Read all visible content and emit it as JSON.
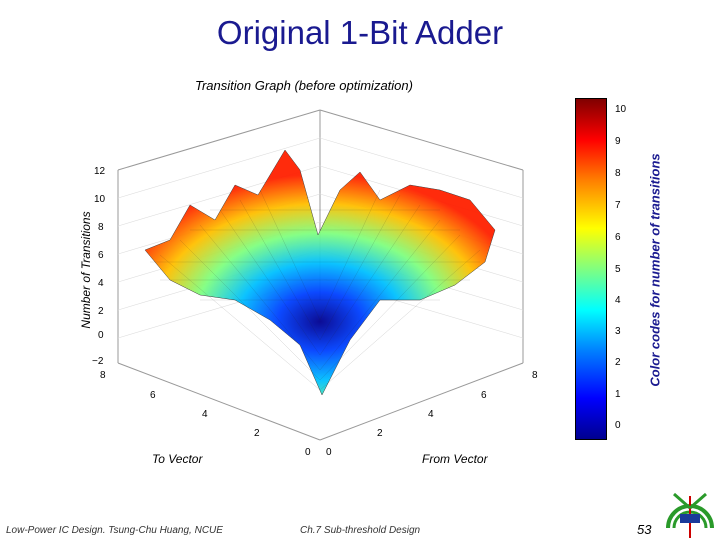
{
  "slide": {
    "title": "Original 1-Bit Adder",
    "plot_title": "Transition Graph (before optimization)",
    "colorbar_label": "Color codes for number of transitions",
    "footer_left": "Low-Power IC Design. Tsung-Chu Huang, NCUE",
    "footer_center": "Ch.7 Sub-threshold Design",
    "page_number": "53"
  },
  "chart_data": {
    "type": "surface",
    "title": "Transition Graph (before optimization)",
    "zlabel": "Number of Transitions",
    "xlabel": "To Vector",
    "ylabel": "From Vector",
    "z_ticks": [
      "−2",
      "0",
      "2",
      "4",
      "6",
      "8",
      "10",
      "12"
    ],
    "x_ticks": [
      "8",
      "6",
      "4",
      "2",
      "0"
    ],
    "y_ticks": [
      "0",
      "2",
      "4",
      "6",
      "8"
    ],
    "zlim": [
      -2,
      12
    ],
    "xlim": [
      0,
      8
    ],
    "ylim": [
      0,
      8
    ],
    "colorbar": {
      "ticks": [
        "10",
        "9",
        "8",
        "7",
        "6",
        "5",
        "4",
        "3",
        "2",
        "1",
        "0"
      ],
      "range": [
        0,
        10
      ],
      "colormap": "jet"
    }
  }
}
